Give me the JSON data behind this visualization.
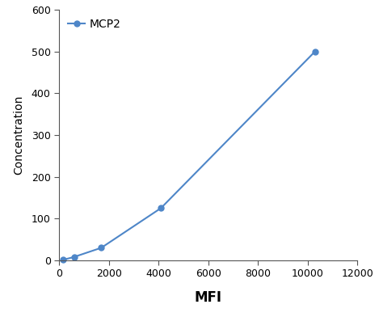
{
  "x": [
    150,
    600,
    1700,
    4100,
    10300
  ],
  "y": [
    1,
    8,
    30,
    125,
    500
  ],
  "line_color": "#4e86c8",
  "marker": "o",
  "marker_size": 5,
  "marker_color": "#4e86c8",
  "xlabel": "MFI",
  "ylabel": "Concentration",
  "xlim": [
    0,
    12000
  ],
  "ylim": [
    0,
    600
  ],
  "xticks": [
    0,
    2000,
    4000,
    6000,
    8000,
    10000,
    12000
  ],
  "yticks": [
    0,
    100,
    200,
    300,
    400,
    500,
    600
  ],
  "legend_label": "MCP2",
  "xlabel_fontsize": 12,
  "ylabel_fontsize": 10,
  "tick_fontsize": 9,
  "legend_fontsize": 10,
  "background_color": "#ffffff",
  "spine_color": "#555555",
  "linewidth": 1.5
}
